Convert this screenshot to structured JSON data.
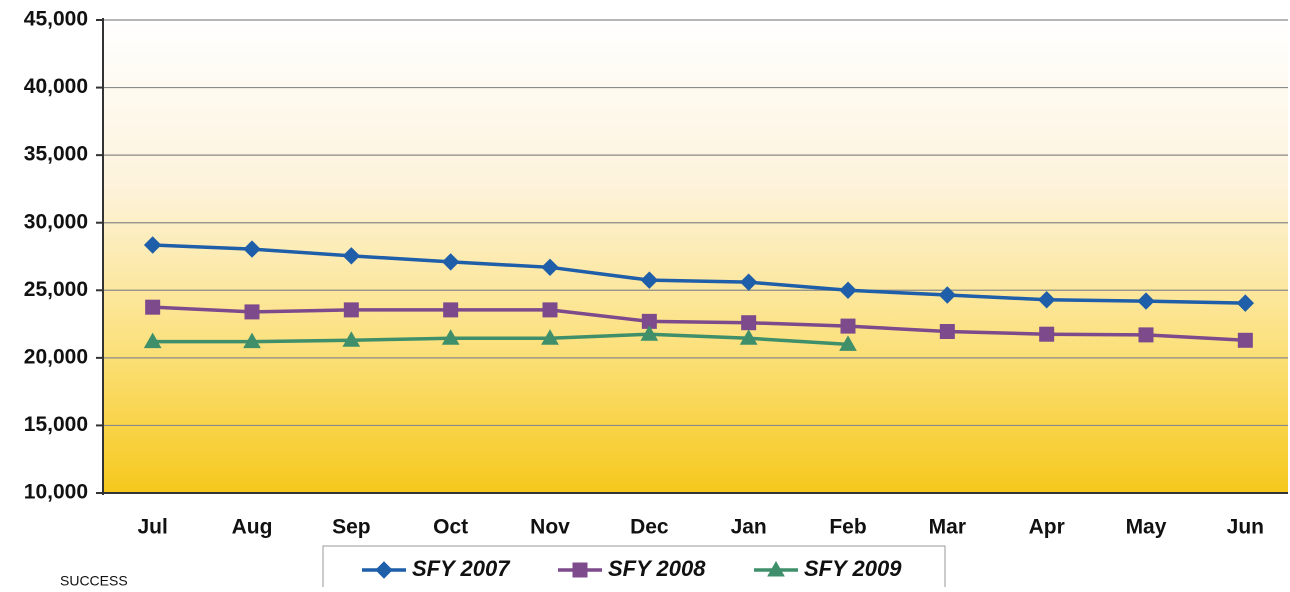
{
  "chart_data": {
    "type": "line",
    "categories": [
      "Jul",
      "Aug",
      "Sep",
      "Oct",
      "Nov",
      "Dec",
      "Jan",
      "Feb",
      "Mar",
      "Apr",
      "May",
      "Jun"
    ],
    "series": [
      {
        "name": "SFY 2007",
        "color": "#1f5ea8",
        "marker": "diamond",
        "values": [
          28350,
          28050,
          27550,
          27100,
          26700,
          25750,
          25600,
          25000,
          24650,
          24300,
          24200,
          24050
        ]
      },
      {
        "name": "SFY 2008",
        "color": "#7d4a8c",
        "marker": "square",
        "values": [
          23750,
          23400,
          23550,
          23550,
          23550,
          22700,
          22600,
          22350,
          21950,
          21750,
          21700,
          21300
        ]
      },
      {
        "name": "SFY 2009",
        "color": "#3f8f6a",
        "marker": "triangle",
        "values": [
          21200,
          21200,
          21300,
          21450,
          21450,
          21750,
          21450,
          21000,
          null,
          null,
          null,
          null
        ]
      }
    ],
    "ylim": [
      10000,
      45000
    ],
    "yticks": [
      {
        "value": 10000,
        "label": "10,000"
      },
      {
        "value": 15000,
        "label": "15,000"
      },
      {
        "value": 20000,
        "label": "20,000"
      },
      {
        "value": 25000,
        "label": "25,000"
      },
      {
        "value": 30000,
        "label": "30,000"
      },
      {
        "value": 35000,
        "label": "35,000"
      },
      {
        "value": 40000,
        "label": "40,000"
      },
      {
        "value": 45000,
        "label": "45,000"
      }
    ],
    "grid": true,
    "source": "SUCCESS"
  }
}
